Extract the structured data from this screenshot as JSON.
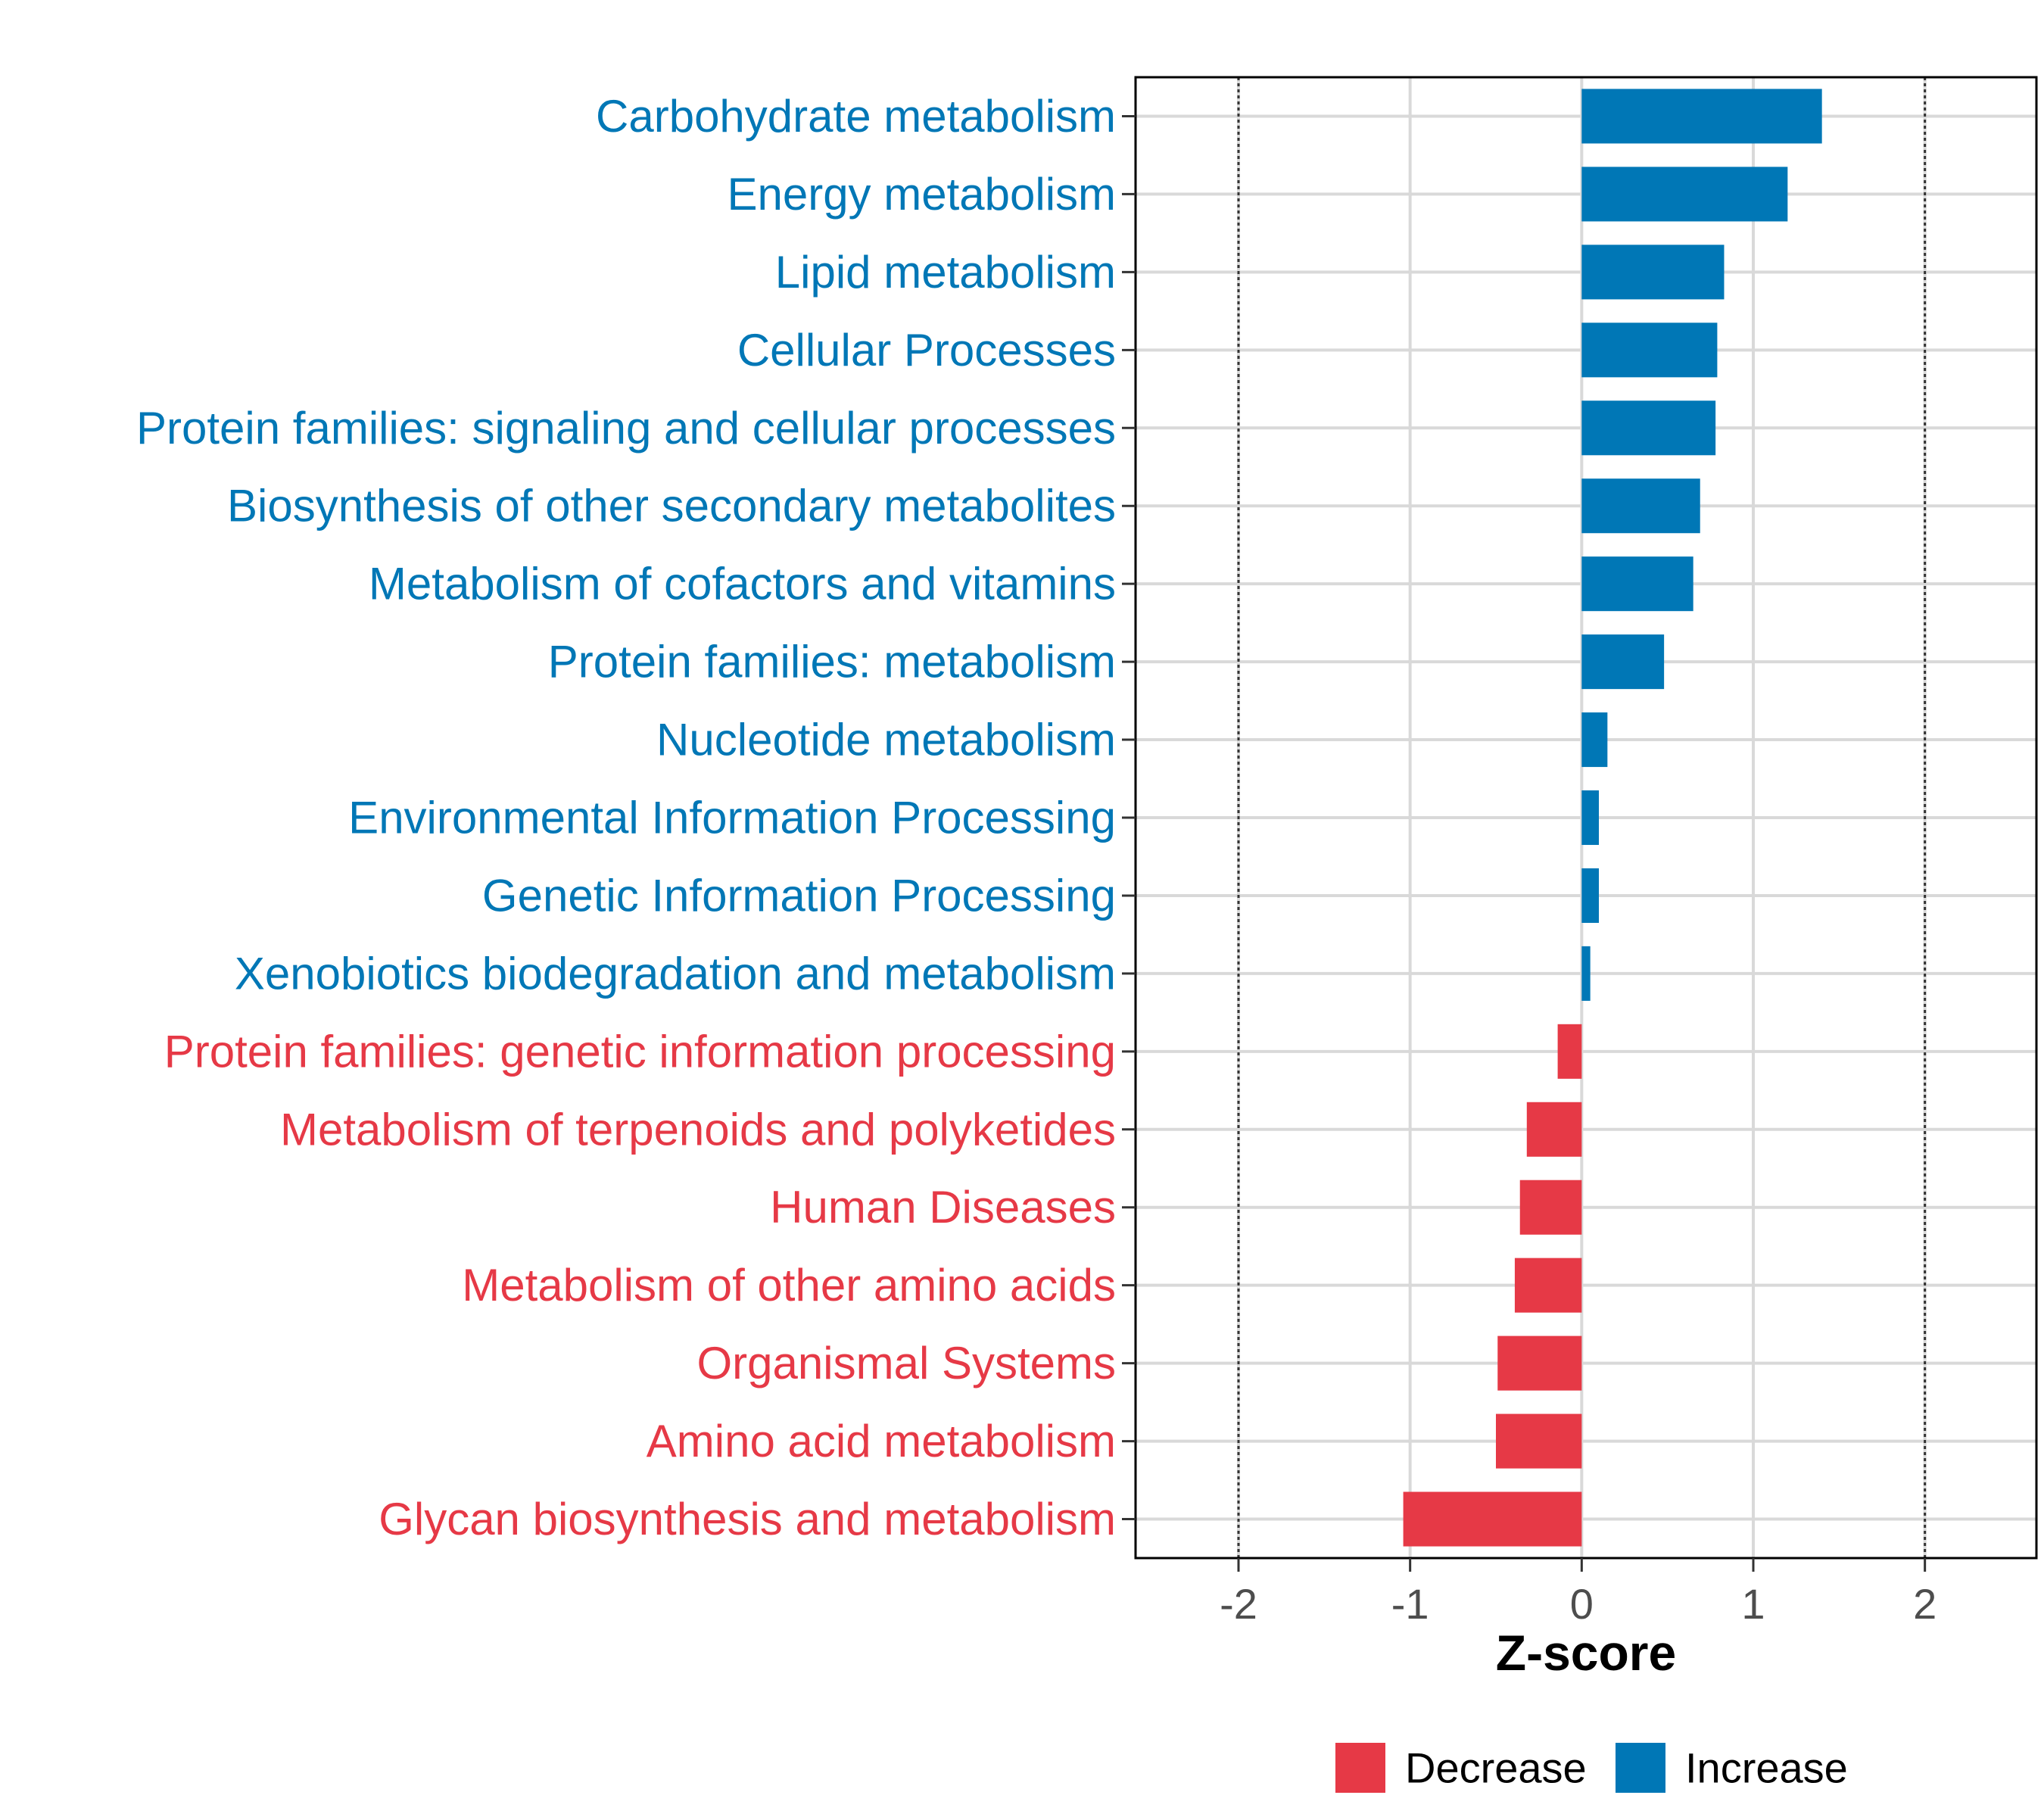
{
  "chart_data": {
    "type": "bar",
    "orientation": "horizontal",
    "title": "",
    "xlabel": "Z-score",
    "ylabel": "",
    "xlim": [
      -2.6,
      2.65
    ],
    "xticks": [
      -2,
      -1,
      0,
      1,
      2
    ],
    "xtick_labels": [
      "-2",
      "-1",
      "0",
      "1",
      "2"
    ],
    "reference_lines": [
      -2,
      2
    ],
    "grid": true,
    "categories": [
      "Carbohydrate metabolism",
      "Energy metabolism",
      "Lipid metabolism",
      "Cellular Processes",
      "Protein families: signaling and cellular processes",
      "Biosynthesis of other secondary metabolites",
      "Metabolism of cofactors and vitamins",
      "Protein families: metabolism",
      "Nucleotide metabolism",
      "Environmental Information Processing",
      "Genetic Information Processing",
      "Xenobiotics biodegradation and metabolism",
      "Protein families: genetic information processing",
      "Metabolism of terpenoids and polyketides",
      "Human Diseases",
      "Metabolism of other amino acids",
      "Organismal Systems",
      "Amino acid metabolism",
      "Glycan biosynthesis and metabolism"
    ],
    "values": [
      1.4,
      1.2,
      0.83,
      0.79,
      0.78,
      0.69,
      0.65,
      0.48,
      0.15,
      0.1,
      0.1,
      0.05,
      -0.14,
      -0.32,
      -0.36,
      -0.39,
      -0.49,
      -0.5,
      -1.04
    ],
    "legend": {
      "position": "bottom",
      "entries": [
        {
          "label": "Decrease",
          "color": "#E63946"
        },
        {
          "label": "Increase",
          "color": "#0077B6"
        }
      ]
    },
    "colors": {
      "increase": "#0077B6",
      "decrease": "#E63946"
    }
  }
}
